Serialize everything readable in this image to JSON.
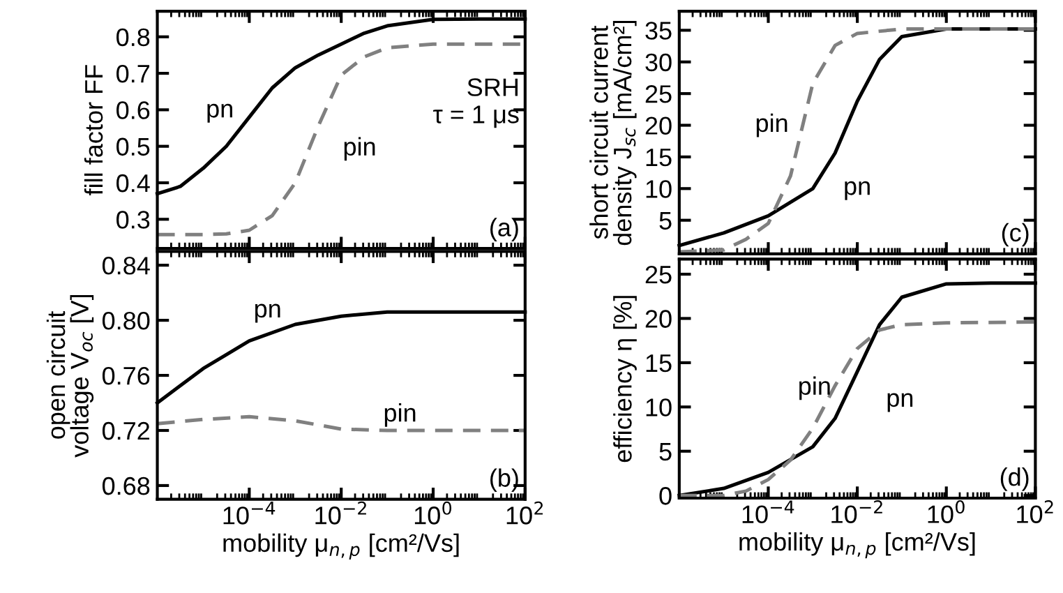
{
  "chart_data": [
    {
      "type": "line",
      "ylabel": "fill factor FF",
      "log": "x",
      "tick_labels": "y",
      "xlim": [
        1e-06,
        100
      ],
      "ylim": [
        0.22,
        0.87
      ],
      "xticks": [
        {
          "value": 0.0001,
          "label": null
        },
        {
          "value": 0.01,
          "label": null
        },
        {
          "value": 1,
          "label": null
        },
        {
          "value": 100,
          "label": null
        }
      ],
      "yticks": [
        0.3,
        0.4,
        0.5,
        0.6,
        0.7,
        0.8
      ],
      "annotations": [
        "(a)",
        "SRH\nτ = 1 μs"
      ],
      "series": [
        {
          "name": "pn",
          "color": "#000000",
          "line_style": "solid",
          "x": [
            1e-06,
            3.16e-06,
            1e-05,
            3.16e-05,
            0.0001,
            0.000316,
            0.001,
            0.00316,
            0.01,
            0.0316,
            0.1,
            1,
            10,
            100
          ],
          "values": [
            0.37,
            0.39,
            0.44,
            0.5,
            0.58,
            0.66,
            0.715,
            0.75,
            0.78,
            0.81,
            0.83,
            0.848,
            0.849,
            0.849
          ]
        },
        {
          "name": "pin",
          "color": "#808080",
          "line_style": "dashed",
          "x": [
            1e-06,
            1e-05,
            3.16e-05,
            0.0001,
            0.000316,
            0.001,
            0.00316,
            0.01,
            0.0316,
            0.1,
            1,
            10,
            100
          ],
          "values": [
            0.258,
            0.258,
            0.26,
            0.27,
            0.31,
            0.4,
            0.555,
            0.695,
            0.745,
            0.77,
            0.78,
            0.78,
            0.78
          ]
        }
      ]
    },
    {
      "type": "line",
      "ylabel": "open circuit\nvoltage V$_{oc}$ [V]",
      "xlabel": "mobility μ$_{n,p}$ [cm²/Vs]",
      "log": "x",
      "xlim": [
        1e-06,
        100
      ],
      "ylim": [
        0.67,
        0.85
      ],
      "xticks": [
        {
          "value": 0.0001,
          "label": "10$^{−4}$"
        },
        {
          "value": 0.01,
          "label": "10$^{−2}$"
        },
        {
          "value": 1,
          "label": "10$^{0}$"
        },
        {
          "value": 100,
          "label": "10$^{2}$"
        }
      ],
      "yticks": [
        {
          "value": 0.68,
          "label": "0.68"
        },
        {
          "value": 0.72,
          "label": "0.72"
        },
        {
          "value": 0.76,
          "label": "0.76"
        },
        {
          "value": 0.8,
          "label": "0.80"
        },
        {
          "value": 0.84,
          "label": "0.84"
        }
      ],
      "annotations": [
        "(b)"
      ],
      "series": [
        {
          "name": "pn",
          "color": "#000000",
          "line_style": "solid",
          "x": [
            1e-06,
            1e-05,
            0.0001,
            0.001,
            0.01,
            0.1,
            1,
            10,
            100
          ],
          "values": [
            0.74,
            0.765,
            0.785,
            0.797,
            0.803,
            0.806,
            0.806,
            0.806,
            0.806
          ]
        },
        {
          "name": "pin",
          "color": "#808080",
          "line_style": "dashed",
          "x": [
            1e-06,
            1e-05,
            0.0001,
            0.001,
            0.01,
            0.1,
            1,
            10,
            100
          ],
          "values": [
            0.725,
            0.728,
            0.73,
            0.727,
            0.721,
            0.72,
            0.72,
            0.72,
            0.72
          ]
        }
      ]
    },
    {
      "type": "line",
      "ylabel": "short circuit current\ndensity J$_{sc}$ [mA/cm²]",
      "log": "x",
      "tick_labels": "y",
      "xlim": [
        1e-06,
        100
      ],
      "ylim": [
        -0.3,
        38
      ],
      "xticks": [
        {
          "value": 0.0001,
          "label": null
        },
        {
          "value": 0.01,
          "label": null
        },
        {
          "value": 1,
          "label": null
        },
        {
          "value": 100,
          "label": null
        }
      ],
      "yticks": [
        5,
        10,
        15,
        20,
        25,
        30,
        35
      ],
      "annotations": [
        "(c)"
      ],
      "series": [
        {
          "name": "pn",
          "color": "#000000",
          "line_style": "solid",
          "x": [
            1e-06,
            1e-05,
            0.0001,
            0.001,
            0.00316,
            0.01,
            0.0316,
            0.1,
            1,
            10,
            100
          ],
          "values": [
            1,
            3,
            5.7,
            10,
            15.6,
            23.8,
            30.4,
            34,
            35.2,
            35.2,
            35.2
          ]
        },
        {
          "name": "pin",
          "color": "#808080",
          "line_style": "dashed",
          "x": [
            1e-06,
            1e-05,
            3.16e-05,
            0.0001,
            0.000316,
            0.001,
            0.00316,
            0.01,
            0.1,
            1,
            100
          ],
          "values": [
            0,
            0.3,
            2,
            4.5,
            12,
            26.6,
            32.6,
            34.5,
            35.2,
            35.2,
            35.2
          ]
        }
      ]
    },
    {
      "type": "line",
      "ylabel": "efficiency η [%]",
      "xlabel": "mobility μ$_{n,p}$ [cm²/Vs]",
      "log": "x",
      "xlim": [
        1e-06,
        100
      ],
      "ylim": [
        -0.3,
        26.7
      ],
      "xticks": [
        {
          "value": 0.0001,
          "label": "10$^{−4}$"
        },
        {
          "value": 0.01,
          "label": "10$^{−2}$"
        },
        {
          "value": 1,
          "label": "10$^{0}$"
        },
        {
          "value": 100,
          "label": "10$^{2}$"
        }
      ],
      "yticks": [
        0,
        5,
        10,
        15,
        20,
        25
      ],
      "annotations": [
        "(d)"
      ],
      "series": [
        {
          "name": "pn",
          "color": "#000000",
          "line_style": "solid",
          "x": [
            1e-06,
            1e-05,
            0.0001,
            0.001,
            0.00316,
            0.01,
            0.0316,
            0.1,
            1,
            10,
            100
          ],
          "values": [
            0,
            0.8,
            2.6,
            5.5,
            8.7,
            14,
            19.3,
            22.4,
            23.9,
            24,
            24
          ]
        },
        {
          "name": "pin",
          "color": "#808080",
          "line_style": "dashed",
          "x": [
            1e-06,
            1e-05,
            3.16e-05,
            0.0001,
            0.000316,
            0.001,
            0.00316,
            0.01,
            0.0316,
            0.1,
            1,
            100
          ],
          "values": [
            0,
            0,
            0.5,
            1.8,
            4,
            7.6,
            12.4,
            16.6,
            18.7,
            19.3,
            19.5,
            19.6
          ]
        }
      ]
    }
  ]
}
